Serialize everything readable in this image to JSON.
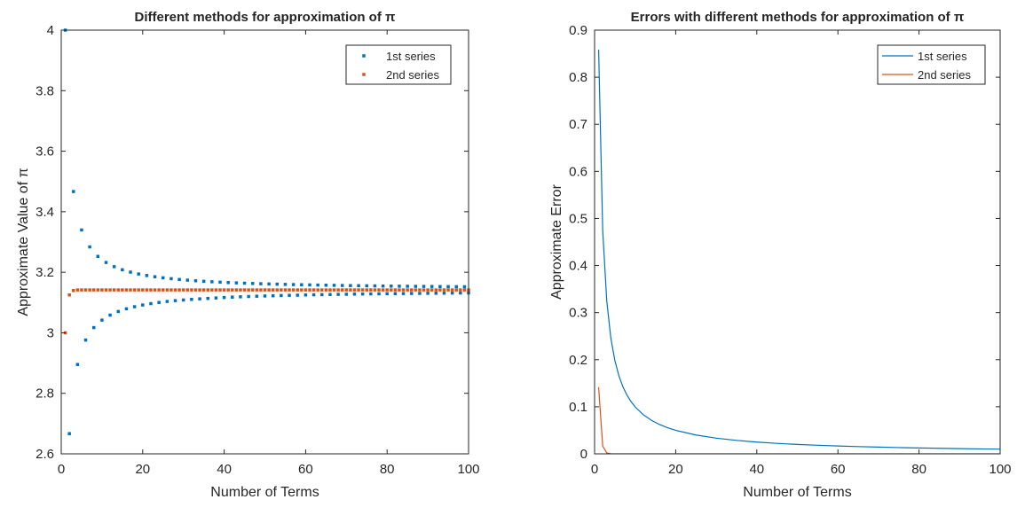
{
  "colors": {
    "series1": "#0072BD",
    "series2": "#D95319",
    "axis": "#262626",
    "background": "#ffffff"
  },
  "chart_data": [
    {
      "type": "scatter",
      "title": "Different methods for approximation of π",
      "xlabel": "Number of Terms",
      "ylabel": "Approximate Value of π",
      "xlim": [
        0,
        100
      ],
      "ylim": [
        2.6,
        4.0
      ],
      "xticks": [
        "0",
        "20",
        "40",
        "60",
        "80",
        "100"
      ],
      "yticks": [
        "2.6",
        "2.8",
        "3",
        "3.2",
        "3.4",
        "3.6",
        "3.8",
        "4"
      ],
      "xtick_values": [
        0,
        20,
        40,
        60,
        80,
        100
      ],
      "ytick_values": [
        2.6,
        2.8,
        3.0,
        3.2,
        3.4,
        3.6,
        3.8,
        4.0
      ],
      "grid": false,
      "legend_position": "top-right",
      "series": [
        {
          "name": "1st series",
          "marker": "square",
          "x": [
            1,
            2,
            3,
            4,
            5,
            6,
            7,
            8,
            9,
            10,
            11,
            12,
            13,
            14,
            15,
            16,
            17,
            18,
            19,
            20,
            21,
            22,
            23,
            24,
            25,
            26,
            27,
            28,
            29,
            30,
            31,
            32,
            33,
            34,
            35,
            36,
            37,
            38,
            39,
            40,
            41,
            42,
            43,
            44,
            45,
            46,
            47,
            48,
            49,
            50,
            51,
            52,
            53,
            54,
            55,
            56,
            57,
            58,
            59,
            60,
            61,
            62,
            63,
            64,
            65,
            66,
            67,
            68,
            69,
            70,
            71,
            72,
            73,
            74,
            75,
            76,
            77,
            78,
            79,
            80,
            81,
            82,
            83,
            84,
            85,
            86,
            87,
            88,
            89,
            90,
            91,
            92,
            93,
            94,
            95,
            96,
            97,
            98,
            99,
            100
          ],
          "y": [
            4.0,
            2.6667,
            3.4667,
            2.8952,
            3.3397,
            2.976,
            3.2837,
            3.0171,
            3.2524,
            3.0418,
            3.2323,
            3.0584,
            3.2184,
            3.0703,
            3.2082,
            3.0792,
            3.2004,
            3.0861,
            3.1942,
            3.0918,
            3.1892,
            3.0964,
            3.1851,
            3.1002,
            3.1816,
            3.1035,
            3.1787,
            3.1063,
            3.1761,
            3.1083,
            3.1739,
            3.1103,
            3.1719,
            3.1121,
            3.1701,
            3.1136,
            3.1686,
            3.115,
            3.1672,
            3.1166,
            3.166,
            3.1178,
            3.1649,
            3.1189,
            3.1639,
            3.1199,
            3.1629,
            3.1208,
            3.1621,
            3.1216,
            3.1613,
            3.1223,
            3.1606,
            3.1231,
            3.1599,
            3.1237,
            3.1593,
            3.1243,
            3.1587,
            3.1249,
            3.1582,
            3.1255,
            3.1577,
            3.126,
            3.1572,
            3.1264,
            3.1568,
            3.1269,
            3.1563,
            3.1273,
            3.1559,
            3.1277,
            3.1556,
            3.1281,
            3.1552,
            3.1285,
            3.1549,
            3.1288,
            3.1545,
            3.1291,
            3.1542,
            3.1294,
            3.154,
            3.1297,
            3.1537,
            3.13,
            3.1534,
            3.1302,
            3.1532,
            3.1305,
            3.153,
            3.1307,
            3.1527,
            3.1309,
            3.1525,
            3.1312,
            3.1523,
            3.1314,
            3.1521,
            3.1316
          ]
        },
        {
          "name": "2nd series",
          "marker": "square",
          "x": [
            1,
            2,
            3,
            4,
            5,
            6,
            7,
            8,
            9,
            10,
            11,
            12,
            13,
            14,
            15,
            16,
            17,
            18,
            19,
            20,
            21,
            22,
            23,
            24,
            25,
            26,
            27,
            28,
            29,
            30,
            31,
            32,
            33,
            34,
            35,
            36,
            37,
            38,
            39,
            40,
            41,
            42,
            43,
            44,
            45,
            46,
            47,
            48,
            49,
            50,
            51,
            52,
            53,
            54,
            55,
            56,
            57,
            58,
            59,
            60,
            61,
            62,
            63,
            64,
            65,
            66,
            67,
            68,
            69,
            70,
            71,
            72,
            73,
            74,
            75,
            76,
            77,
            78,
            79,
            80,
            81,
            82,
            83,
            84,
            85,
            86,
            87,
            88,
            89,
            90,
            91,
            92,
            93,
            94,
            95,
            96,
            97,
            98,
            99,
            100
          ],
          "y": [
            3.0,
            3.125,
            3.1396,
            3.1415,
            3.1416,
            3.1416,
            3.1416,
            3.1416,
            3.1416,
            3.1416,
            3.1416,
            3.1416,
            3.1416,
            3.1416,
            3.1416,
            3.1416,
            3.1416,
            3.1416,
            3.1416,
            3.1416,
            3.1416,
            3.1416,
            3.1416,
            3.1416,
            3.1416,
            3.1416,
            3.1416,
            3.1416,
            3.1416,
            3.1416,
            3.1416,
            3.1416,
            3.1416,
            3.1416,
            3.1416,
            3.1416,
            3.1416,
            3.1416,
            3.1416,
            3.1416,
            3.1416,
            3.1416,
            3.1416,
            3.1416,
            3.1416,
            3.1416,
            3.1416,
            3.1416,
            3.1416,
            3.1416,
            3.1416,
            3.1416,
            3.1416,
            3.1416,
            3.1416,
            3.1416,
            3.1416,
            3.1416,
            3.1416,
            3.1416,
            3.1416,
            3.1416,
            3.1416,
            3.1416,
            3.1416,
            3.1416,
            3.1416,
            3.1416,
            3.1416,
            3.1416,
            3.1416,
            3.1416,
            3.1416,
            3.1416,
            3.1416,
            3.1416,
            3.1416,
            3.1416,
            3.1416,
            3.1416,
            3.1416,
            3.1416,
            3.1416,
            3.1416,
            3.1416,
            3.1416,
            3.1416,
            3.1416,
            3.1416,
            3.1416,
            3.1416,
            3.1416,
            3.1416,
            3.1416,
            3.1416,
            3.1416,
            3.1416,
            3.1416,
            3.1416,
            3.1416
          ]
        }
      ]
    },
    {
      "type": "line",
      "title": "Errors with different methods for approximation of π",
      "xlabel": "Number of Terms",
      "ylabel": "Approximate Error",
      "xlim": [
        0,
        100
      ],
      "ylim": [
        0,
        0.9
      ],
      "xticks": [
        "0",
        "20",
        "40",
        "60",
        "80",
        "100"
      ],
      "yticks": [
        "0",
        "0.1",
        "0.2",
        "0.3",
        "0.4",
        "0.5",
        "0.6",
        "0.7",
        "0.8",
        "0.9"
      ],
      "xtick_values": [
        0,
        20,
        40,
        60,
        80,
        100
      ],
      "ytick_values": [
        0,
        0.1,
        0.2,
        0.3,
        0.4,
        0.5,
        0.6,
        0.7,
        0.8,
        0.9
      ],
      "grid": false,
      "legend_position": "top-right",
      "series": [
        {
          "name": "1st series",
          "x": [
            1,
            2,
            3,
            4,
            5,
            6,
            7,
            8,
            9,
            10,
            12,
            14,
            16,
            18,
            20,
            25,
            30,
            35,
            40,
            45,
            50,
            55,
            60,
            65,
            70,
            75,
            80,
            85,
            90,
            95,
            100
          ],
          "y": [
            0.8584,
            0.4749,
            0.3251,
            0.2464,
            0.1981,
            0.1656,
            0.1421,
            0.1245,
            0.1108,
            0.0998,
            0.0832,
            0.0713,
            0.0624,
            0.0555,
            0.05,
            0.04,
            0.0333,
            0.0286,
            0.025,
            0.0222,
            0.02,
            0.0182,
            0.0167,
            0.0154,
            0.0143,
            0.0133,
            0.0125,
            0.0118,
            0.0111,
            0.0105,
            0.01
          ]
        },
        {
          "name": "2nd series",
          "x": [
            1,
            2,
            3,
            4,
            5,
            6,
            8,
            10,
            20,
            40,
            60,
            80,
            100
          ],
          "y": [
            0.1416,
            0.0166,
            0.002,
            0.0002,
            0.0,
            0.0,
            0.0,
            0.0,
            0.0,
            0.0,
            0.0,
            0.0,
            0.0
          ]
        }
      ]
    }
  ]
}
